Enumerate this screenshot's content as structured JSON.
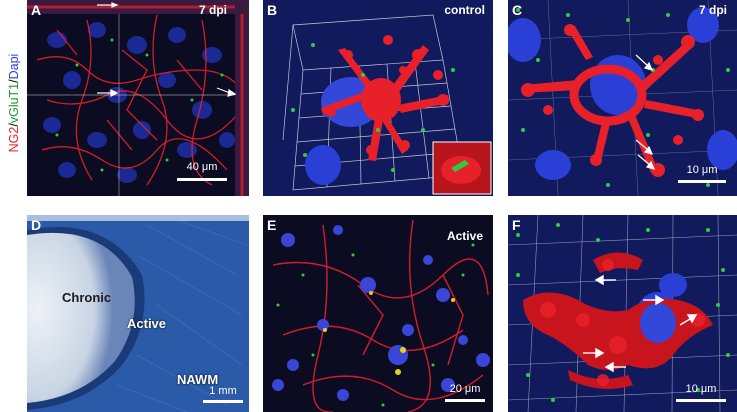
{
  "y_axis_label": {
    "ng2": "NG2",
    "sep1": "/",
    "vglut1": "vGluT1",
    "sep2": "/",
    "dapi": "Dapi"
  },
  "panels": {
    "A": {
      "letter": "A",
      "condition": "7 dpi",
      "scale": "40 μm"
    },
    "B": {
      "letter": "B",
      "condition": "control"
    },
    "C": {
      "letter": "C",
      "condition": "7 dpi",
      "scale": "10 μm"
    },
    "D": {
      "letter": "D",
      "region_chronic": "Chronic",
      "region_active": "Active",
      "region_nawm": "NAWM",
      "scale": "1 mm"
    },
    "E": {
      "letter": "E",
      "condition": "Active",
      "scale": "20 μm"
    },
    "F": {
      "letter": "F",
      "scale": "10 μm"
    }
  },
  "colors": {
    "ng2": "#e8202a",
    "vglut1": "#2ecc40",
    "dapi": "#2a3fd6",
    "confocal_bg": "#0b0b22",
    "render_bg": "#101a5c",
    "stain_bg": "#2a5aa8",
    "lesion_core": "#e8eef5"
  }
}
